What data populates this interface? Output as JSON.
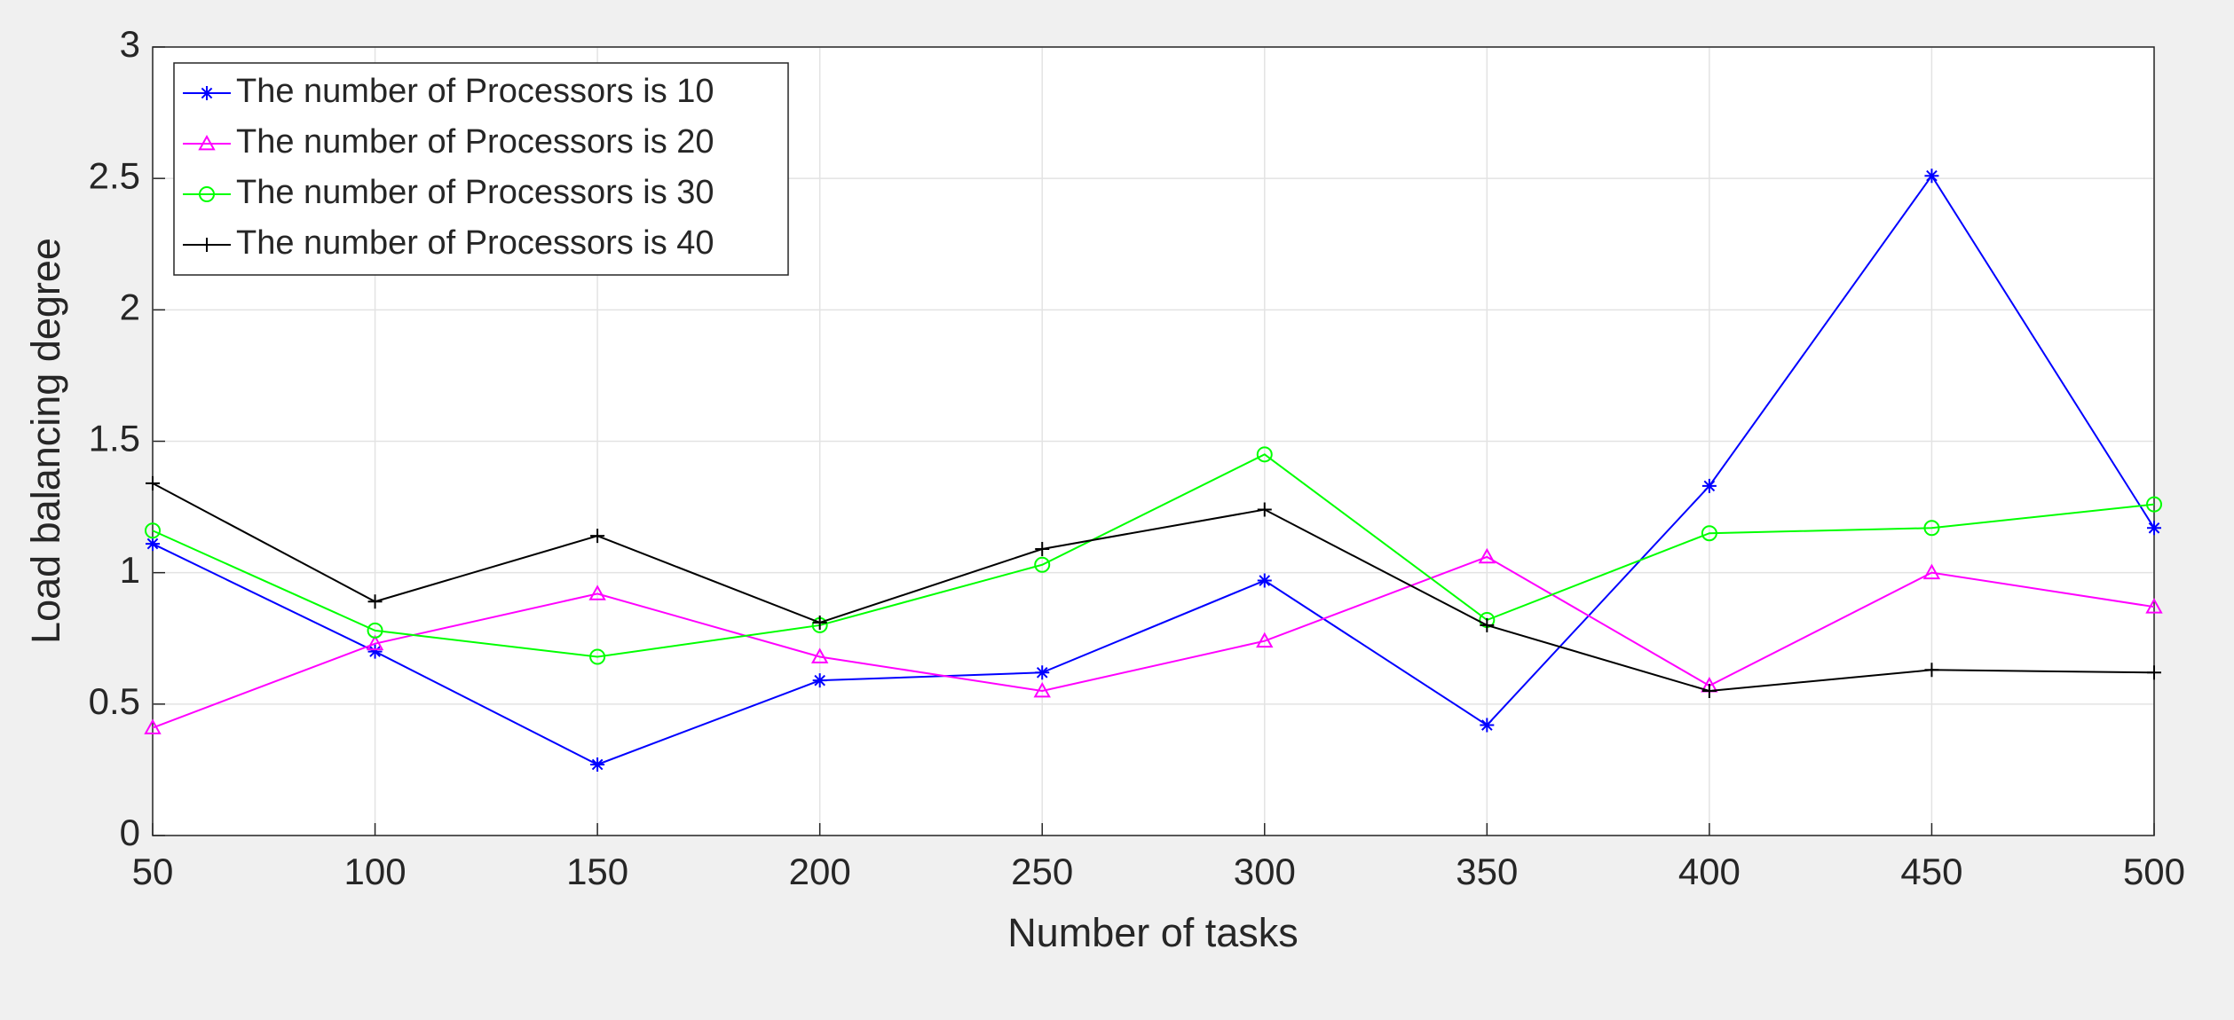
{
  "chart_data": {
    "type": "line",
    "xlabel": "Number of tasks",
    "ylabel": "Load balancing degree",
    "x": [
      50,
      100,
      150,
      200,
      250,
      300,
      350,
      400,
      450,
      500
    ],
    "xlim": [
      50,
      500
    ],
    "xticks": [
      50,
      100,
      150,
      200,
      250,
      300,
      350,
      400,
      450,
      500
    ],
    "ylim": [
      0,
      3
    ],
    "yticks": [
      0,
      0.5,
      1,
      1.5,
      2,
      2.5,
      3
    ],
    "grid": true,
    "legend": "upper left",
    "series": [
      {
        "name": "The number of Processors is 10",
        "color": "#0000ff",
        "marker": "asterisk",
        "values": [
          1.11,
          0.7,
          0.27,
          0.59,
          0.62,
          0.97,
          0.42,
          1.33,
          2.51,
          1.17
        ]
      },
      {
        "name": "The number of Processors is 20",
        "color": "#ff00ff",
        "marker": "triangle",
        "values": [
          0.41,
          0.73,
          0.92,
          0.68,
          0.55,
          0.74,
          1.06,
          0.57,
          1.0,
          0.87
        ]
      },
      {
        "name": "The number of Processors is 30",
        "color": "#00ff00",
        "marker": "circle",
        "values": [
          1.16,
          0.78,
          0.68,
          0.8,
          1.03,
          1.45,
          0.82,
          1.15,
          1.17,
          1.26
        ]
      },
      {
        "name": "The number of Processors is 40",
        "color": "#000000",
        "marker": "plus",
        "values": [
          1.34,
          0.89,
          1.14,
          0.81,
          1.09,
          1.24,
          0.8,
          0.55,
          0.63,
          0.62
        ]
      }
    ]
  }
}
